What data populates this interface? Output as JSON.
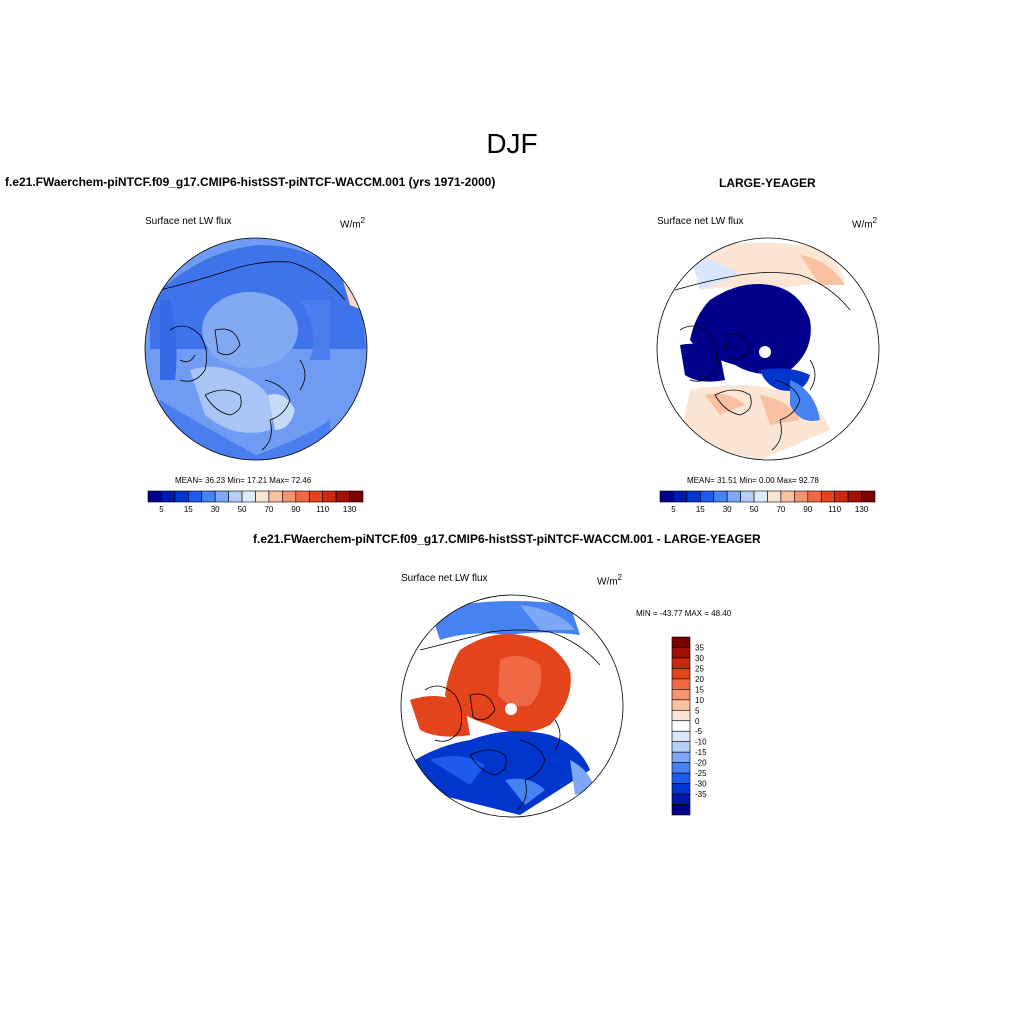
{
  "figure": {
    "title": "DJF",
    "case_title": "f.e21.FWaerchem-piNTCF.f09_g17.CMIP6-histSST-piNTCF-WACCM.001 (yrs 1971-2000)",
    "ref_title": "LARGE-YEAGER",
    "diff_title": "f.e21.FWaerchem-piNTCF.f09_g17.CMIP6-histSST-piNTCF-WACCM.001 - LARGE-YEAGER"
  },
  "panels": {
    "case": {
      "variable": "Surface net LW flux",
      "units": "W/m",
      "units_exp": "2",
      "stats": "MEAN=  36.23  Min=  17.21  Max=  72.46"
    },
    "ref": {
      "variable": "Surface net LW flux",
      "units": "W/m",
      "units_exp": "2",
      "stats": "MEAN=  31.51  Min=   0.00  Max=  92.78"
    },
    "diff": {
      "variable": "Surface net LW flux",
      "units": "W/m",
      "units_exp": "2",
      "stats": "MIN = -43.77 MAX =  48.40"
    }
  },
  "colorbars": {
    "abs_colors": [
      "#00008b",
      "#0019a8",
      "#0036cc",
      "#1e5af0",
      "#4682f0",
      "#7ea8f5",
      "#b5cef8",
      "#e0ebfa",
      "#fbe6d6",
      "#f9c0a1",
      "#f69470",
      "#ef6a44",
      "#e4441b",
      "#c92a0f",
      "#a30f05",
      "#7a0000"
    ],
    "abs_labels": [
      "5",
      "15",
      "30",
      "50",
      "70",
      "90",
      "110",
      "130"
    ],
    "diff_colors": [
      "#7a0000",
      "#a30f05",
      "#c92a0f",
      "#e4441b",
      "#ef6a44",
      "#f69470",
      "#f9c0a1",
      "#fbe6d6",
      "#ffffff",
      "#d9e6fb",
      "#b5cef8",
      "#7ea8f5",
      "#4682f0",
      "#1e5af0",
      "#0036cc",
      "#0019a8",
      "#00008b"
    ],
    "diff_labels": [
      "35",
      "30",
      "25",
      "20",
      "15",
      "10",
      "5",
      "0",
      "-5",
      "-10",
      "-15",
      "-20",
      "-25",
      "-30",
      "-35"
    ]
  }
}
